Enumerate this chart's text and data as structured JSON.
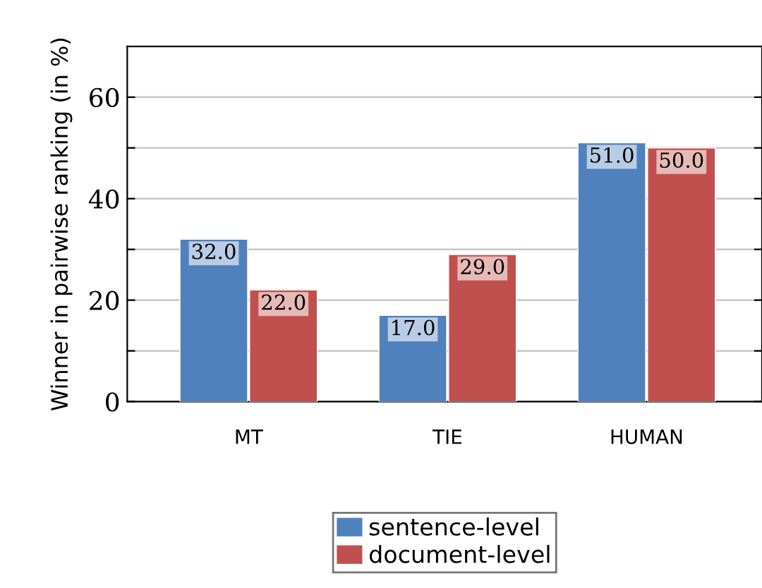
{
  "chart_data": {
    "type": "bar",
    "ylabel": "Winner in pairwise ranking (in %)",
    "categories": [
      "MT",
      "TIE",
      "HUMAN"
    ],
    "series": [
      {
        "name": "sentence-level",
        "color": "#4f81bd",
        "values": [
          32.0,
          17.0,
          51.0
        ],
        "value_labels": [
          "32.0",
          "17.0",
          "51.0"
        ]
      },
      {
        "name": "document-level",
        "color": "#c0504d",
        "values": [
          22.0,
          29.0,
          50.0
        ],
        "value_labels": [
          "22.0",
          "29.0",
          "50.0"
        ]
      }
    ],
    "ylim": [
      0,
      70
    ],
    "yticks": [
      0,
      {
        "value": 10,
        "label": null
      },
      20,
      {
        "value": 30,
        "label": null
      },
      40,
      {
        "value": 50,
        "label": null
      },
      60
    ],
    "grid": "y",
    "legend": "bottom"
  }
}
